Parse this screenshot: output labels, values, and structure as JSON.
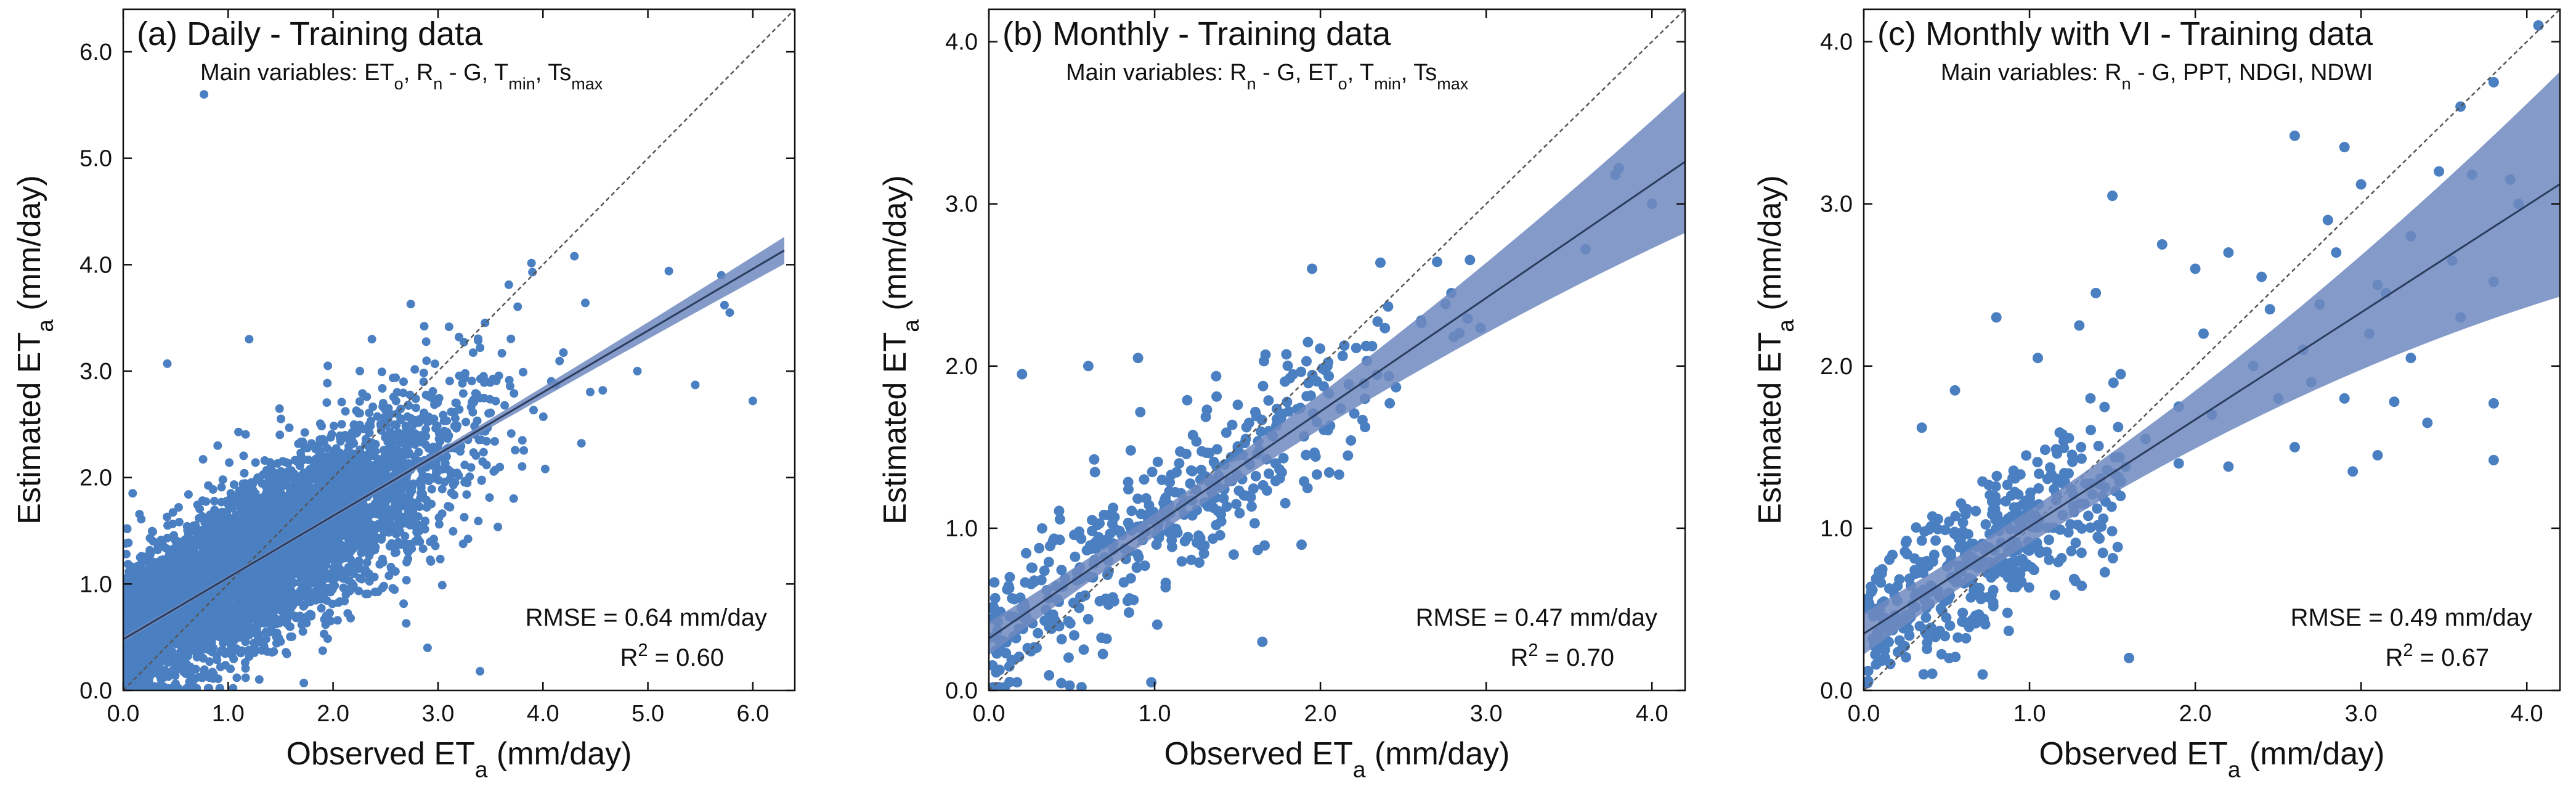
{
  "chart_data": [
    {
      "type": "scatter",
      "title": "(a) Daily - Training data",
      "variables_line": [
        {
          "t": "Main variables: ET"
        },
        {
          "t": "o",
          "s": "sub"
        },
        {
          "t": ", R"
        },
        {
          "t": "n",
          "s": "sub"
        },
        {
          "t": " - G, T"
        },
        {
          "t": "min",
          "s": "sub"
        },
        {
          "t": ", Ts"
        },
        {
          "t": "max",
          "s": "sub"
        }
      ],
      "xlabel_parts": [
        {
          "t": "Observed ET"
        },
        {
          "t": "a",
          "s": "sub"
        },
        {
          "t": " (mm/day)"
        }
      ],
      "ylabel_parts": [
        {
          "t": "Estimated ET"
        },
        {
          "t": "a",
          "s": "sub"
        },
        {
          "t": " (mm/day)"
        }
      ],
      "xlim": [
        0,
        6.4
      ],
      "ylim": [
        0,
        6.4
      ],
      "xticks": [
        0,
        1,
        2,
        3,
        4,
        5,
        6
      ],
      "yticks": [
        0,
        1,
        2,
        3,
        4,
        5,
        6
      ],
      "tick_labels_x": [
        "0.0",
        "1.0",
        "2.0",
        "3.0",
        "4.0",
        "5.0",
        "6.0"
      ],
      "tick_labels_y": [
        "0.0",
        "1.0",
        "2.0",
        "3.0",
        "4.0",
        "5.0",
        "6.0"
      ],
      "rmse_text": "RMSE = 0.64 mm/day",
      "r2_parts": [
        {
          "t": "R"
        },
        {
          "t": "2",
          "s": "sup"
        },
        {
          "t": " = 0.60"
        }
      ],
      "regression": {
        "intercept": 0.48,
        "slope": 0.58,
        "x_range": [
          0,
          6.3
        ],
        "ci_halfwidth": 0.02
      },
      "one_to_one": true,
      "cloud": {
        "n": 5200,
        "seed": 11,
        "x_mean": 1.3,
        "x_sd": 0.9,
        "x_max": 6.0,
        "resid_sd": 0.5,
        "ylim": [
          0,
          6.4
        ]
      },
      "outliers": [
        [
          0.77,
          5.6
        ],
        [
          0.42,
          3.07
        ],
        [
          1.95,
          3.05
        ],
        [
          2.37,
          3.3
        ],
        [
          2.74,
          3.63
        ],
        [
          3.2,
          3.32
        ],
        [
          3.9,
          3.93
        ],
        [
          4.3,
          4.08
        ],
        [
          5.2,
          3.94
        ],
        [
          5.7,
          3.9
        ],
        [
          5.73,
          3.62
        ],
        [
          5.78,
          3.55
        ],
        [
          6.0,
          2.72
        ],
        [
          3.4,
          0.18
        ],
        [
          2.9,
          0.4
        ],
        [
          0.9,
          2.3
        ],
        [
          1.2,
          3.3
        ],
        [
          4.9,
          3.0
        ]
      ],
      "colors": {
        "points": "#4a7fc1",
        "line": "#2b3d5e",
        "band": "#6f89bf",
        "diag": "#555555"
      }
    },
    {
      "type": "scatter",
      "title": "(b) Monthly - Training data",
      "variables_line": [
        {
          "t": "Main variables: R"
        },
        {
          "t": "n",
          "s": "sub"
        },
        {
          "t": " - G, ET"
        },
        {
          "t": "o",
          "s": "sub"
        },
        {
          "t": ", T"
        },
        {
          "t": "min",
          "s": "sub"
        },
        {
          "t": ", Ts"
        },
        {
          "t": "max",
          "s": "sub"
        }
      ],
      "xlabel_parts": [
        {
          "t": "Observed ET"
        },
        {
          "t": "a",
          "s": "sub"
        },
        {
          "t": " (mm/day)"
        }
      ],
      "ylabel_parts": [
        {
          "t": "Estimated ET"
        },
        {
          "t": "a",
          "s": "sub"
        },
        {
          "t": " (mm/day)"
        }
      ],
      "xlim": [
        0,
        4.2
      ],
      "ylim": [
        0,
        4.2
      ],
      "xticks": [
        0,
        1,
        2,
        3,
        4
      ],
      "yticks": [
        0,
        1,
        2,
        3,
        4
      ],
      "tick_labels_x": [
        "0.0",
        "1.0",
        "2.0",
        "3.0",
        "4.0"
      ],
      "tick_labels_y": [
        "0.0",
        "1.0",
        "2.0",
        "3.0",
        "4.0"
      ],
      "rmse_text": "RMSE = 0.47 mm/day",
      "r2_parts": [
        {
          "t": "R"
        },
        {
          "t": "2",
          "s": "sup"
        },
        {
          "t": " = 0.70"
        }
      ],
      "regression": {
        "intercept": 0.32,
        "slope": 0.7,
        "x_range": [
          0,
          4.2
        ],
        "ci_halfwidth": 0.07
      },
      "one_to_one": true,
      "cloud": {
        "n": 430,
        "seed": 23,
        "x_mean": 0.95,
        "x_sd": 0.8,
        "x_max": 4.0,
        "resid_sd": 0.32,
        "ylim": [
          0,
          4.2
        ]
      },
      "outliers": [
        [
          0.2,
          1.95
        ],
        [
          0.6,
          2.0
        ],
        [
          0.9,
          2.05
        ],
        [
          1.95,
          2.6
        ],
        [
          3.8,
          3.22
        ],
        [
          3.78,
          3.18
        ],
        [
          4.0,
          3.0
        ],
        [
          0.17,
          0.05
        ],
        [
          0.98,
          0.05
        ],
        [
          1.65,
          0.3
        ],
        [
          3.6,
          2.72
        ]
      ],
      "colors": {
        "points": "#4a7fc1",
        "line": "#2b3d5e",
        "band": "#6f89bf",
        "diag": "#555555"
      }
    },
    {
      "type": "scatter",
      "title": "(c) Monthly with VI - Training data",
      "variables_line": [
        {
          "t": "Main variables: R"
        },
        {
          "t": "n",
          "s": "sub"
        },
        {
          "t": " - G, PPT, NDGI, NDWI"
        }
      ],
      "xlabel_parts": [
        {
          "t": "Observed ET"
        },
        {
          "t": "a",
          "s": "sub"
        },
        {
          "t": " (mm/day)"
        }
      ],
      "ylabel_parts": [
        {
          "t": "Estimated ET"
        },
        {
          "t": "a",
          "s": "sub"
        },
        {
          "t": " (mm/day)"
        }
      ],
      "xlim": [
        0,
        4.2
      ],
      "ylim": [
        0,
        4.2
      ],
      "xticks": [
        0,
        1,
        2,
        3,
        4
      ],
      "yticks": [
        0,
        1,
        2,
        3,
        4
      ],
      "tick_labels_x": [
        "0.0",
        "1.0",
        "2.0",
        "3.0",
        "4.0"
      ],
      "tick_labels_y": [
        "0.0",
        "1.0",
        "2.0",
        "3.0",
        "4.0"
      ],
      "rmse_text": "RMSE = 0.49 mm/day",
      "r2_parts": [
        {
          "t": "R"
        },
        {
          "t": "2",
          "s": "sup"
        },
        {
          "t": " = 0.67"
        }
      ],
      "regression": {
        "intercept": 0.35,
        "slope": 0.66,
        "x_range": [
          0,
          4.2
        ],
        "ci_halfwidth": 0.1
      },
      "one_to_one": true,
      "cloud": {
        "n": 430,
        "seed": 37,
        "x_mean": 0.75,
        "x_sd": 0.45,
        "x_max": 1.6,
        "resid_sd": 0.28,
        "ylim": [
          0,
          4.2
        ]
      },
      "outliers": [
        [
          4.07,
          4.1
        ],
        [
          3.6,
          3.6
        ],
        [
          3.8,
          3.75
        ],
        [
          2.6,
          3.42
        ],
        [
          2.9,
          3.35
        ],
        [
          3.0,
          3.12
        ],
        [
          3.47,
          3.2
        ],
        [
          3.67,
          3.18
        ],
        [
          3.9,
          3.15
        ],
        [
          1.5,
          3.05
        ],
        [
          1.8,
          2.75
        ],
        [
          2.0,
          2.6
        ],
        [
          2.2,
          2.7
        ],
        [
          2.4,
          2.55
        ],
        [
          2.8,
          2.9
        ],
        [
          3.3,
          2.8
        ],
        [
          3.6,
          2.3
        ],
        [
          3.8,
          1.42
        ],
        [
          3.8,
          1.77
        ],
        [
          3.8,
          2.52
        ],
        [
          3.4,
          1.65
        ],
        [
          2.95,
          1.35
        ],
        [
          3.1,
          1.45
        ],
        [
          2.6,
          1.5
        ],
        [
          2.2,
          1.38
        ],
        [
          1.9,
          1.4
        ],
        [
          1.6,
          0.2
        ],
        [
          1.55,
          1.95
        ],
        [
          1.7,
          1.55
        ],
        [
          1.3,
          2.25
        ],
        [
          1.4,
          2.45
        ],
        [
          1.05,
          2.05
        ],
        [
          0.8,
          2.3
        ],
        [
          0.55,
          1.85
        ],
        [
          0.35,
          1.62
        ],
        [
          2.45,
          2.35
        ],
        [
          2.75,
          2.38
        ],
        [
          3.1,
          2.5
        ],
        [
          3.05,
          2.2
        ],
        [
          2.9,
          1.8
        ],
        [
          3.3,
          2.05
        ],
        [
          3.2,
          1.78
        ],
        [
          2.1,
          1.7
        ],
        [
          2.5,
          1.8
        ],
        [
          1.9,
          1.75
        ],
        [
          2.35,
          2.0
        ],
        [
          2.65,
          2.1
        ],
        [
          2.7,
          1.9
        ],
        [
          2.05,
          2.2
        ],
        [
          2.85,
          2.7
        ],
        [
          3.55,
          2.65
        ],
        [
          3.95,
          3.0
        ],
        [
          3.15,
          2.45
        ]
      ],
      "colors": {
        "points": "#4a7fc1",
        "line": "#2b3d5e",
        "band": "#6f89bf",
        "diag": "#555555"
      }
    }
  ]
}
